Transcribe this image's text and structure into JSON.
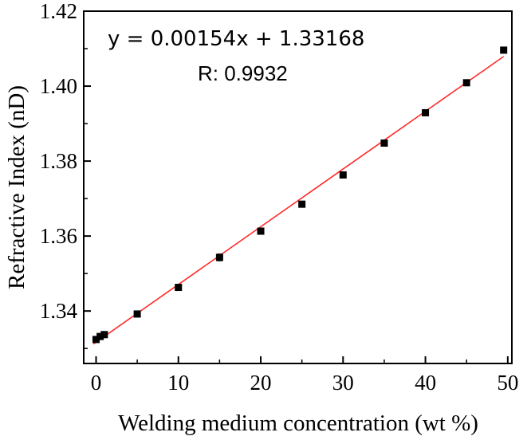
{
  "chart_data": {
    "type": "scatter",
    "title": "",
    "xlabel": "Welding medium concentration (wt %)",
    "ylabel": "Refractive Index (nD)",
    "xlim": [
      -1.5,
      50.5
    ],
    "ylim": [
      1.326,
      1.42
    ],
    "xticks": [
      0,
      10,
      20,
      30,
      40,
      50
    ],
    "yticks": [
      1.34,
      1.36,
      1.38,
      1.4,
      1.42
    ],
    "xtick_labels": [
      "0",
      "10",
      "20",
      "30",
      "40",
      "50"
    ],
    "ytick_labels": [
      "1.34",
      "1.36",
      "1.38",
      "1.40",
      "1.42"
    ],
    "grid": false,
    "legend": "none",
    "series": [
      {
        "marker": "square",
        "color": "#000000",
        "x": [
          0,
          0.5,
          1,
          5,
          10,
          15,
          20,
          25,
          30,
          35,
          40,
          45,
          49.5
        ],
        "y": [
          1.3324,
          1.3332,
          1.3337,
          1.3392,
          1.3463,
          1.3543,
          1.3613,
          1.3685,
          1.3763,
          1.3848,
          1.3929,
          1.4009,
          1.4096
        ],
        "yerr": [
          0.0003,
          0.0003,
          0.0003,
          0.0003,
          0.0003,
          0.0009,
          0.0006,
          0.0003,
          0.0006,
          0.0003,
          0.0003,
          0.0003,
          0.0003
        ]
      }
    ],
    "fit": {
      "color": "#ff2a2a",
      "slope": 0.00154,
      "intercept": 1.33168,
      "x_range": [
        -0.3,
        49.5
      ]
    },
    "annotations": {
      "equation": "y = 0.00154x + 1.33168",
      "r_value": "R: 0.9932"
    }
  }
}
